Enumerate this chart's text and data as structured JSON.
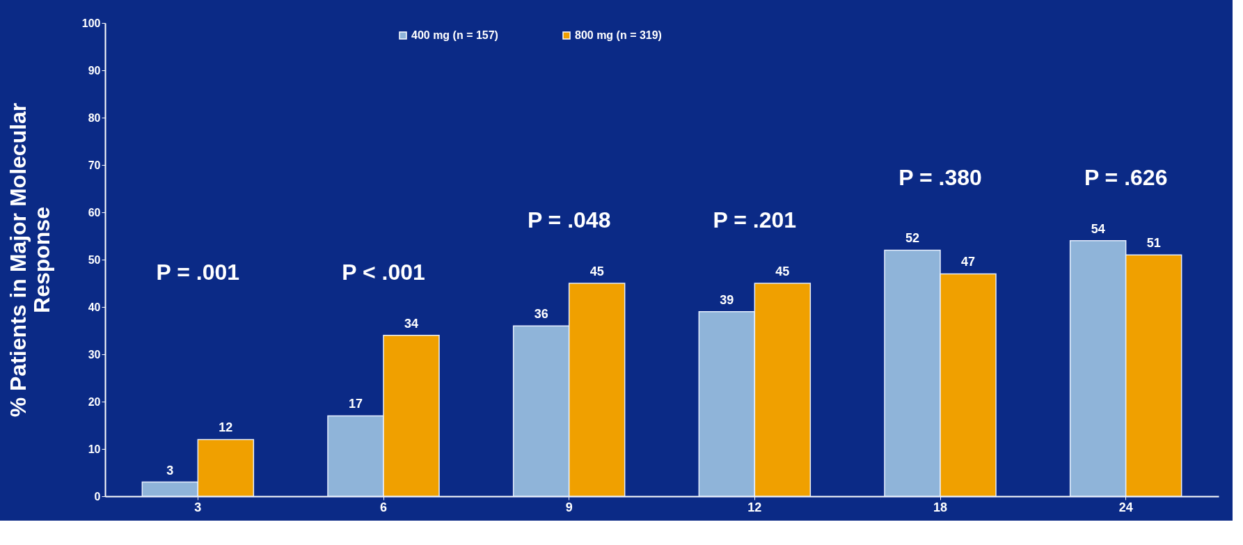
{
  "chart_data": {
    "type": "bar",
    "ylabel": "% Patients in Major Molecular\nResponse",
    "categories": [
      "3",
      "6",
      "9",
      "12",
      "18",
      "24"
    ],
    "series": [
      {
        "name": "400 mg (n = 157)",
        "color": "#8fb4d9",
        "values": [
          3,
          17,
          36,
          39,
          52,
          54
        ]
      },
      {
        "name": "800 mg (n = 319)",
        "color": "#f0a000",
        "values": [
          12,
          34,
          45,
          45,
          47,
          51
        ]
      }
    ],
    "ylim": [
      0,
      100
    ],
    "yticks": [
      0,
      10,
      20,
      30,
      40,
      50,
      60,
      70,
      80,
      90,
      100
    ],
    "data_labels": true,
    "grid": false,
    "legend": "top",
    "annotations": [
      "P = .001",
      "P < .001",
      "P = .048",
      "P = .201",
      "P = .380",
      "P = .626"
    ]
  }
}
